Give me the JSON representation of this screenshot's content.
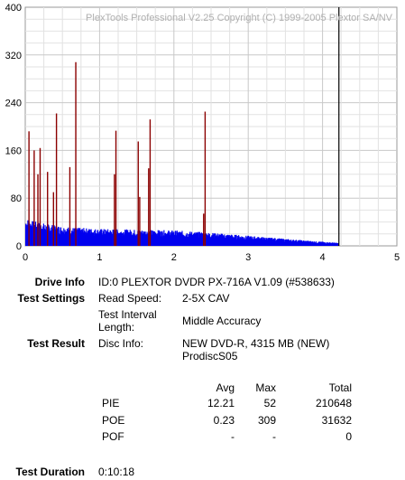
{
  "chart_data": {
    "type": "bar",
    "title": "PlexTools Professional V2.25 Copyright (C) 1999-2005 Plextor SA/NV",
    "x_ticks": [
      "0",
      "1",
      "2",
      "3",
      "4",
      "5"
    ],
    "y_ticks": [
      "0",
      "80",
      "160",
      "240",
      "320",
      "400"
    ],
    "xlim": [
      0,
      5
    ],
    "ylim": [
      0,
      400
    ],
    "grid": true,
    "end_marker_x": 4.22,
    "series": [
      {
        "color": "#0000ee",
        "profile_x": [
          0,
          0.1,
          0.3,
          0.6,
          1.0,
          1.5,
          2.0,
          2.5,
          3.0,
          3.5,
          3.9,
          4.2
        ],
        "profile_y": [
          36,
          32,
          28,
          24,
          22,
          21,
          20,
          17,
          13,
          9,
          6,
          4
        ]
      },
      {
        "color": "#8b0000",
        "spikes_x": [
          0.05,
          0.12,
          0.17,
          0.2,
          0.3,
          0.38,
          0.42,
          0.6,
          0.68,
          1.2,
          1.22,
          1.52,
          1.54,
          1.66,
          1.68,
          2.4,
          2.42
        ],
        "spikes_y": [
          192,
          160,
          120,
          164,
          124,
          90,
          222,
          132,
          308,
          120,
          193,
          175,
          82,
          130,
          212,
          54,
          225
        ]
      }
    ]
  },
  "info": {
    "drive_info_label": "Drive Info",
    "drive_info_value": "ID:0 PLEXTOR DVDR PX-716A V1.09 (#538633)",
    "test_settings_label": "Test Settings",
    "read_speed_label": "Read Speed:",
    "read_speed_value": "2-5X CAV",
    "interval_label_1": "Test Interval",
    "interval_label_2": "Length:",
    "interval_value": "Middle Accuracy",
    "test_result_label": "Test Result",
    "disc_info_label": "Disc Info:",
    "disc_info_value_1": "NEW DVD-R, 4315 MB (NEW)",
    "disc_info_value_2": "ProdiscS05",
    "duration_label": "Test Duration",
    "duration_value": "0:10:18"
  },
  "results": {
    "headers": {
      "avg": "Avg",
      "max": "Max",
      "total": "Total"
    },
    "rows": [
      {
        "name": "PIE",
        "avg": "12.21",
        "max": "52",
        "total": "210648"
      },
      {
        "name": "POE",
        "avg": "0.23",
        "max": "309",
        "total": "31632"
      },
      {
        "name": "POF",
        "avg": "-",
        "max": "-",
        "total": "0"
      }
    ]
  }
}
